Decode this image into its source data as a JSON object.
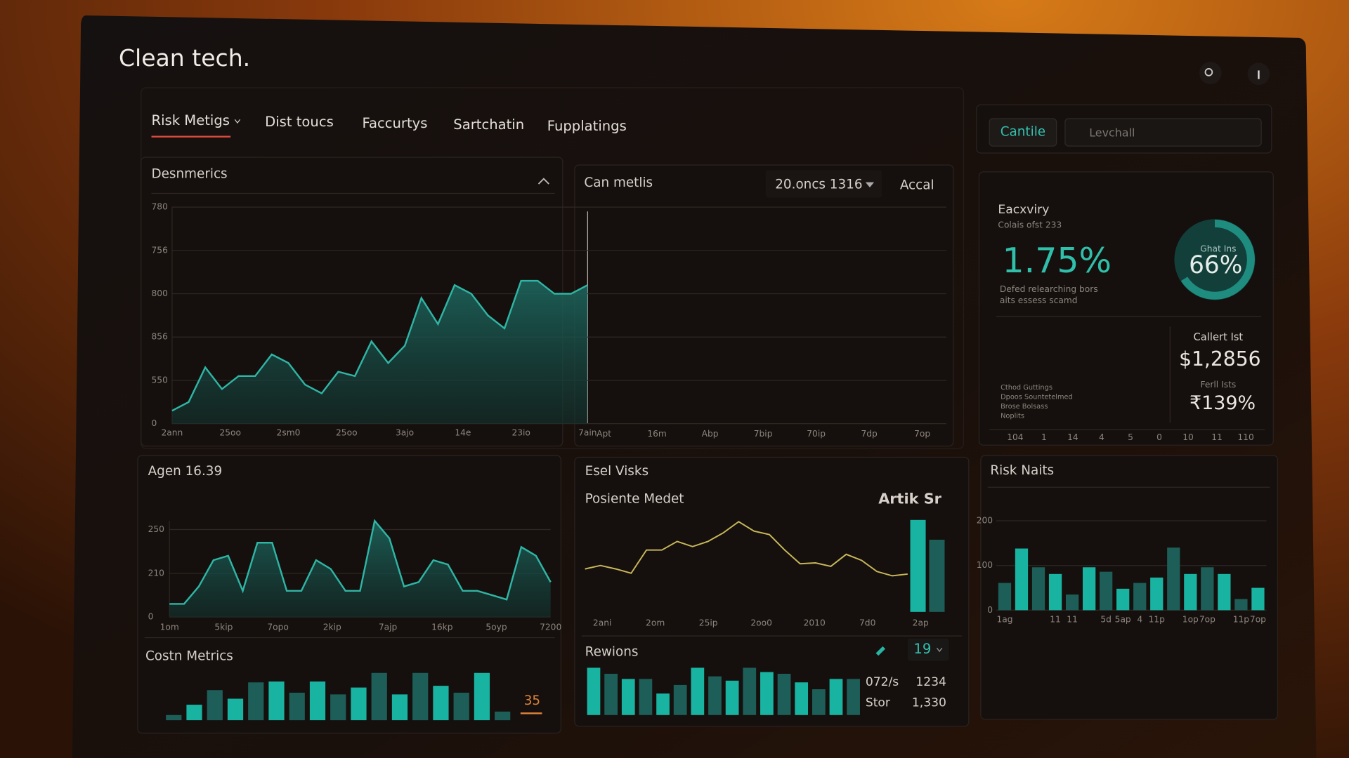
{
  "header": {
    "title": "Clean tech."
  },
  "nav": {
    "tabs": [
      "Risk Metigs",
      "Dist toucs",
      "Faccurtys",
      "Sartchatin",
      "Fupplatings"
    ]
  },
  "toolbar": {
    "button": "Cantile",
    "search": "Levchall"
  },
  "panels": [
    {
      "title": "Desnmerics",
      "chart": {
        "type": "area",
        "color": "#2fb5a5",
        "grid": true,
        "x": [
          0,
          1,
          2,
          3,
          4,
          5,
          6,
          7,
          8,
          9,
          10,
          11,
          12,
          13,
          14,
          15,
          16,
          17,
          18,
          19,
          20,
          21,
          22,
          23,
          24,
          25
        ],
        "values": [
          0.3,
          0.5,
          1.3,
          0.8,
          1.1,
          1.1,
          1.6,
          1.4,
          0.9,
          0.7,
          1.2,
          1.1,
          1.9,
          1.4,
          1.8,
          2.9,
          2.3,
          3.2,
          3.0,
          2.5,
          2.2,
          3.3,
          3.3,
          3.0,
          3.0,
          3.2
        ],
        "xlim": [
          0,
          25
        ],
        "ylim": [
          0,
          5
        ],
        "xticks": [
          {
            "value": 0,
            "label": "2ann"
          },
          {
            "value": 3.5,
            "label": "25oo"
          },
          {
            "value": 7,
            "label": "2sm0"
          },
          {
            "value": 10.5,
            "label": "25oo"
          },
          {
            "value": 14,
            "label": "3ajo"
          },
          {
            "value": 17.5,
            "label": "14e"
          },
          {
            "value": 21,
            "label": "23io"
          },
          {
            "value": 25,
            "label": "7ain"
          }
        ],
        "yticks": [
          {
            "value": 0,
            "label": "0"
          },
          {
            "value": 1,
            "label": "550"
          },
          {
            "value": 2,
            "label": "856"
          },
          {
            "value": 3,
            "label": "800"
          },
          {
            "value": 4,
            "label": "756"
          },
          {
            "value": 5,
            "label": "780"
          }
        ]
      }
    },
    {
      "title": "Can metlis",
      "dropdown": "20.oncs 1316",
      "action": "Accal",
      "axis_labels": [
        "Apt",
        "16m",
        "Abp",
        "7bip",
        "70ip",
        "7dp",
        "7op"
      ]
    },
    {
      "title": "Agen 16.39",
      "chart": {
        "type": "area",
        "color": "#2fb5a5",
        "grid": true,
        "x": [
          0,
          1,
          2,
          3,
          4,
          5,
          6,
          7,
          8,
          9,
          10,
          11,
          12,
          13,
          14,
          15,
          16,
          17,
          18,
          19,
          20,
          21,
          22,
          23,
          24,
          25,
          26
        ],
        "values": [
          0.3,
          0.3,
          0.7,
          1.3,
          1.4,
          0.6,
          1.7,
          1.7,
          0.6,
          0.6,
          1.3,
          1.1,
          0.6,
          0.6,
          2.2,
          1.8,
          0.7,
          0.8,
          1.3,
          1.2,
          0.6,
          0.6,
          0.5,
          0.4,
          1.6,
          1.4,
          0.8
        ],
        "xlim": [
          0,
          26
        ],
        "ylim": [
          0,
          2.2
        ],
        "xticks": [
          {
            "value": 0,
            "label": "1om"
          },
          {
            "value": 3.7,
            "label": "5kip"
          },
          {
            "value": 7.4,
            "label": "7opo"
          },
          {
            "value": 11.1,
            "label": "2kip"
          },
          {
            "value": 14.9,
            "label": "7ajp"
          },
          {
            "value": 18.6,
            "label": "16kp"
          },
          {
            "value": 22.3,
            "label": "5oyp"
          },
          {
            "value": 26,
            "label": "7200"
          }
        ],
        "yticks": [
          {
            "value": 0,
            "label": "0"
          },
          {
            "value": 1,
            "label": "210"
          },
          {
            "value": 2,
            "label": "250"
          }
        ]
      },
      "sub": {
        "title": "Costn Metrics",
        "badge": "35",
        "chart": {
          "type": "bar",
          "colors": [
            "#1d5e58",
            "#19b3a2"
          ],
          "ylim": [
            0,
            60
          ],
          "values": [
            6,
            18,
            35,
            25,
            44,
            45,
            32,
            45,
            30,
            38,
            55,
            30,
            55,
            40,
            32,
            55,
            10
          ]
        }
      }
    },
    {
      "title": "Esel Visks",
      "subtitle": "Posiente Medet",
      "tag": "Artik Sr",
      "chart": {
        "type": "line",
        "ylim": [
          0,
          110
        ],
        "axis_labels": [
          "2ani",
          "2om",
          "25ip",
          "2oo0",
          "2010",
          "7d0",
          "2ap"
        ],
        "series": [
          {
            "type": "line",
            "color": "#c9b85a",
            "x": [
              0,
              1,
              2,
              3,
              4,
              5,
              6,
              7,
              8,
              9,
              10,
              11,
              12,
              13,
              14,
              15,
              16,
              17,
              18,
              19,
              20,
              21
            ],
            "xlim": [
              0,
              21
            ],
            "values": [
              50,
              54,
              50,
              45,
              72,
              72,
              82,
              76,
              82,
              92,
              105,
              94,
              90,
              72,
              56,
              57,
              53,
              67,
              60,
              47,
              42,
              44
            ]
          },
          {
            "type": "bar",
            "colors": [
              "#19b3a2",
              "#1d5e58"
            ],
            "values": [
              107,
              84
            ]
          }
        ]
      },
      "sub": {
        "title": "Rewions",
        "badge": "19",
        "stats": [
          [
            "072/s",
            "1234"
          ],
          [
            "Stor",
            "1,330"
          ]
        ],
        "chart": {
          "type": "bar",
          "colors": [
            "#19b3a2",
            "#1d5e58"
          ],
          "ylim": [
            0,
            60
          ],
          "values": [
            55,
            48,
            42,
            42,
            25,
            35,
            55,
            45,
            40,
            55,
            50,
            48,
            38,
            30,
            42,
            42
          ]
        }
      }
    },
    {
      "title": "Eacxviry",
      "caption": "Colais ofst 233",
      "big_value": "1.75%",
      "notes": [
        "Defed relearching bors",
        "aits essess scamd"
      ],
      "donut": {
        "value": 66,
        "value_label": "66%",
        "caption": "Ghat Ins",
        "color": "#1f8c80"
      },
      "stats": [
        {
          "label": "Callert Ist",
          "value": "$1,2856"
        },
        {
          "label": "Ferll Ists",
          "value": "₹139%"
        }
      ],
      "legend": [
        "Cthod Guttings",
        "Dpoos Sountetelmed",
        "Brose Bolsass",
        "Noplits"
      ],
      "axis_labels": [
        "104",
        "1",
        "14",
        "4",
        "5",
        "0",
        "10",
        "11",
        "110"
      ]
    },
    {
      "title": "Risk Naits",
      "chart": {
        "type": "bar",
        "colors": [
          "#1d5e58",
          "#19b3a2"
        ],
        "grid": true,
        "categories": [
          "1ag",
          null,
          null,
          "11",
          "11",
          null,
          "5d",
          "5ap",
          "4",
          "11p",
          null,
          "1op",
          "7op",
          null,
          "11p",
          "7op"
        ],
        "values": [
          61,
          138,
          96,
          81,
          35,
          96,
          86,
          48,
          61,
          73,
          140,
          81,
          96,
          81,
          25,
          50
        ],
        "ylim": [
          0,
          200
        ],
        "yticks": [
          0,
          100,
          200
        ]
      }
    }
  ]
}
